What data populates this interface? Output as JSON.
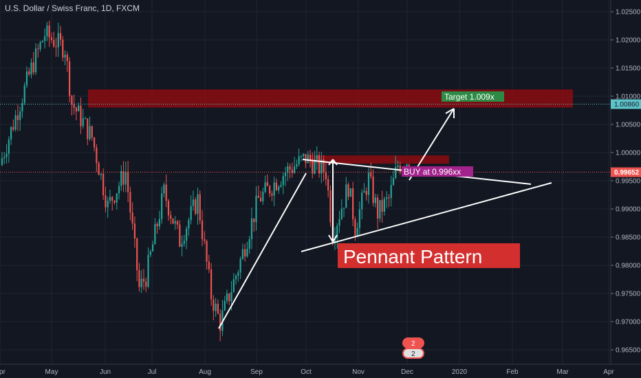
{
  "header": {
    "title": "U.S. Dollar / Swiss Franc, 1D, FXCM"
  },
  "colors": {
    "bg": "#131722",
    "grid": "#1f2433",
    "up": "#26a69a",
    "down": "#ef5350",
    "zone": "#8b0c10",
    "target_bg": "#2e8b45",
    "buy_bg": "#a3238c",
    "price_tag": "#ef5350",
    "cross_tag": "#5ec3c9"
  },
  "chart_data": {
    "type": "candlestick",
    "title": "U.S. Dollar / Swiss Franc, 1D, FXCM",
    "ylim": [
      0.9635,
      1.0275
    ],
    "y_ticks": [
      "1.02500",
      "1.02000",
      "1.01500",
      "1.01000",
      "1.00500",
      "1.00000",
      "0.99500",
      "0.99000",
      "0.98500",
      "0.98000",
      "0.97500",
      "0.97000",
      "0.96500"
    ],
    "x_ticks": [
      "Apr",
      "May",
      "Jun",
      "Jul",
      "Aug",
      "Sep",
      "Oct",
      "Nov",
      "Dec",
      "2020",
      "Feb",
      "Mar",
      "Apr"
    ],
    "close_path": [
      [
        0,
        0.9978
      ],
      [
        14,
        1.0149
      ],
      [
        20,
        1.021
      ],
      [
        29,
        1.0185
      ],
      [
        32,
        1.0088
      ],
      [
        41,
        1.0027
      ],
      [
        48,
        0.9905
      ],
      [
        56,
        0.9966
      ],
      [
        62,
        0.9759
      ],
      [
        65,
        0.978
      ],
      [
        73,
        0.993
      ],
      [
        80,
        0.9844
      ],
      [
        88,
        0.9917
      ],
      [
        94,
        0.9746
      ],
      [
        98,
        0.9698
      ],
      [
        106,
        0.9795
      ],
      [
        115,
        0.9917
      ],
      [
        127,
        0.9966
      ],
      [
        136,
        0.999
      ],
      [
        145,
        0.9966
      ],
      [
        148,
        0.9856
      ],
      [
        155,
        0.9941
      ],
      [
        158,
        0.9868
      ],
      [
        164,
        0.9954
      ],
      [
        168,
        0.9893
      ],
      [
        173,
        0.9917
      ],
      [
        177,
        0.9978
      ],
      [
        181,
        0.9985
      ],
      [
        182,
        0.99652
      ]
    ],
    "last_price": "0.99652",
    "crosshair_price": "1.00860",
    "annotations": {
      "target": "Target 1.009x",
      "buy": "BUY at 0.996xx",
      "pattern": "Pennant Pattern"
    },
    "event_badges": [
      "2",
      "2"
    ]
  }
}
